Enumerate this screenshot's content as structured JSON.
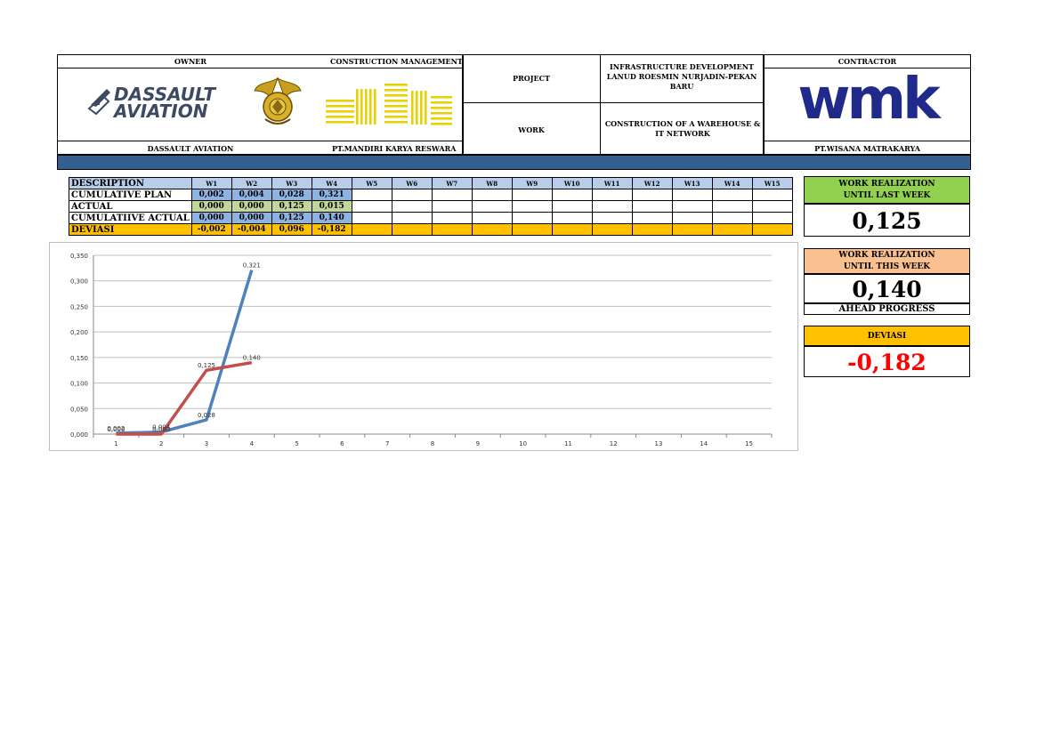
{
  "header": {
    "owner_label": "OWNER",
    "cm_label": "CONSTRUCTION MANAGEMENT",
    "project_label": "PROJECT",
    "project_value": "INFRASTRUCTURE DEVELOPMENT LANUD ROESMIN NURJADIN-PEKAN BARU",
    "work_label": "WORK",
    "work_value": "CONSTRUCTION OF A WAREHOUSE & IT NETWORK",
    "contractor_label": "CONTRACTOR",
    "owner_name": "DASSAULT AVIATION",
    "cm_name": "PT.MANDIRI KARYA RESWARA",
    "contractor_name": "PT.WISANA MATRAKARYA",
    "dassault_logo_line1": "DASSAULT",
    "dassault_logo_line2": "AVIATION",
    "wmk_logo": "wmk"
  },
  "table": {
    "desc_header": "DESCRIPTION",
    "weeks": [
      "W1",
      "W2",
      "W3",
      "W4",
      "W5",
      "W6",
      "W7",
      "W8",
      "W9",
      "W10",
      "W11",
      "W12",
      "W13",
      "W14",
      "W15"
    ],
    "rows": [
      {
        "label": "CUMULATIVE PLAN",
        "values": [
          "0,002",
          "0,004",
          "0,028",
          "0,321"
        ]
      },
      {
        "label": "ACTUAL",
        "values": [
          "0,000",
          "0,000",
          "0,125",
          "0,015"
        ]
      },
      {
        "label": "CUMULATIIVE ACTUAL",
        "values": [
          "0,000",
          "0,000",
          "0,125",
          "0,140"
        ]
      },
      {
        "label": "DEVIASI",
        "values": [
          "-0,002",
          "-0,004",
          "0,096",
          "-0,182"
        ]
      }
    ]
  },
  "stats": {
    "last_week_title_1": "WORK REALIZATION",
    "last_week_title_2": "UNTIL LAST WEEK",
    "last_week_value": "0,125",
    "this_week_title_1": "WORK REALIZATION",
    "this_week_title_2": "UNTIL THIS WEEK",
    "this_week_value": "0,140",
    "ahead_label": "AHEAD PROGRESS",
    "deviasi_title": "DEVIASI",
    "deviasi_value": "-0,182",
    "colors": {
      "green": "#92d050",
      "peach": "#fac090",
      "orange": "#ffc000",
      "red": "#ff0000"
    }
  },
  "chart_data": {
    "type": "line",
    "x": [
      1,
      2,
      3,
      4,
      5,
      6,
      7,
      8,
      9,
      10,
      11,
      12,
      13,
      14,
      15
    ],
    "ylim": [
      0,
      0.35
    ],
    "yticks": [
      "0,000",
      "0,050",
      "0,100",
      "0,150",
      "0,200",
      "0,250",
      "0,300",
      "0,350"
    ],
    "grid": true,
    "series": [
      {
        "color": "#4f81bd",
        "x": [
          1,
          2,
          3,
          4
        ],
        "values": [
          0.002,
          0.004,
          0.028,
          0.321
        ],
        "labels": [
          "0,002",
          "0,004",
          "0,028",
          "0,321"
        ]
      },
      {
        "color": "#c0504d",
        "x": [
          1,
          2,
          3,
          4
        ],
        "values": [
          0.0,
          0.0,
          0.125,
          0.14
        ],
        "labels": [
          "0,000",
          "0,000",
          "0,125",
          "0,140"
        ]
      }
    ]
  }
}
